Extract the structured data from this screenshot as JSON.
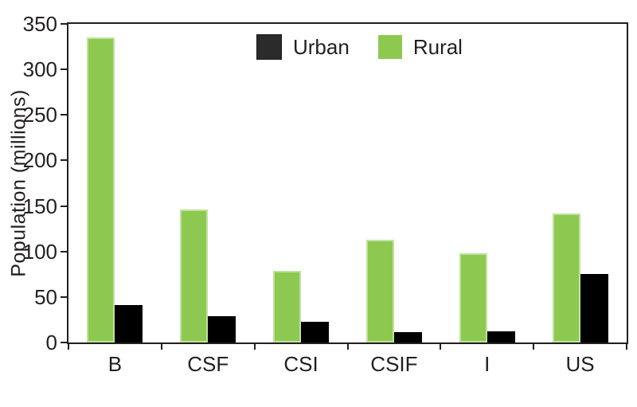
{
  "chart_data": {
    "type": "bar",
    "title": "",
    "xlabel": "",
    "ylabel": "Population (millions)",
    "categories": [
      "B",
      "CSF",
      "CSI",
      "CSIF",
      "I",
      "US"
    ],
    "series": [
      {
        "name": "Urban",
        "color": "#000000",
        "swatch_color": "#2b2b2b",
        "values": [
          41,
          29,
          23,
          11,
          12,
          75
        ]
      },
      {
        "name": "Rural",
        "color": "#8dc950",
        "swatch_color": "#8dc950",
        "values": [
          335,
          146,
          79,
          113,
          98,
          142
        ]
      }
    ],
    "group_draw_order": [
      "Rural",
      "Urban"
    ],
    "ylim": [
      0,
      350
    ],
    "yticks": [
      0,
      50,
      100,
      150,
      200,
      250,
      300,
      350
    ],
    "grid": false,
    "legend_position": "top-center-inside",
    "axis_box": "full-frame",
    "tick_direction": "out",
    "axis_color": "#231f20",
    "background_color": "#ffffff"
  }
}
